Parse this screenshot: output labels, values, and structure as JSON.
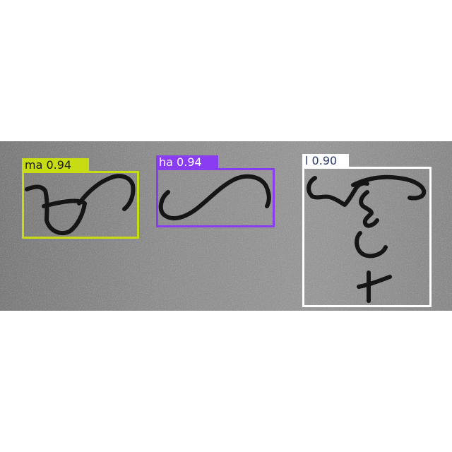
{
  "detections": [
    {
      "class_label": "ma",
      "confidence": "0.94",
      "box_color": "#c8dc14",
      "label_text_color": "#1a1a1a"
    },
    {
      "class_label": "ha",
      "confidence": "0.94",
      "box_color": "#8a3cf0",
      "label_text_color": "#ffffff"
    },
    {
      "class_label": "l",
      "confidence": "0.90",
      "box_color": "#ffffff",
      "label_text_color": "#2a3a6a"
    }
  ],
  "background_color": "#ffffff",
  "surface_color": "#8d8d8d",
  "ink_color": "#151515"
}
